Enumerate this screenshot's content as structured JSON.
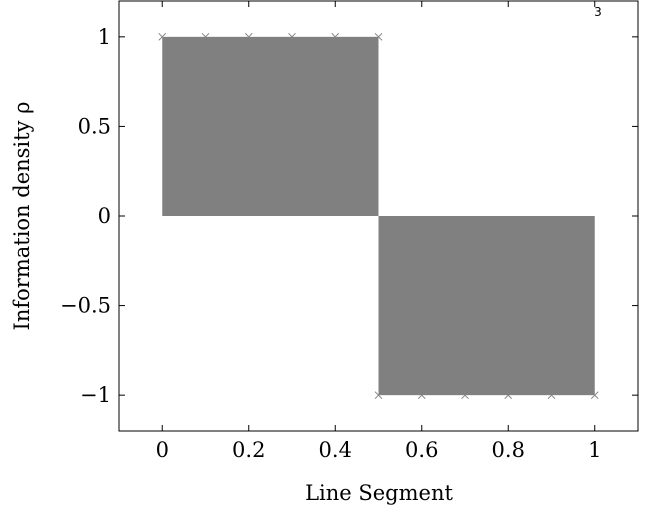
{
  "page_number": "3",
  "chart_data": {
    "type": "area",
    "xlabel": "Line Segment",
    "ylabel": "Information density ρ",
    "xlim": [
      -0.1,
      1.1
    ],
    "ylim": [
      -1.2,
      1.2
    ],
    "xticks": [
      0,
      0.2,
      0.4,
      0.6,
      0.8,
      1
    ],
    "xtick_labels": [
      "0",
      "0.2",
      "0.4",
      "0.6",
      "0.8",
      "1"
    ],
    "yticks": [
      -1,
      -0.5,
      0,
      0.5,
      1
    ],
    "ytick_labels": [
      "−1",
      "−0.5",
      "0",
      "0.5",
      "1"
    ],
    "series": [
      {
        "x": [
          0,
          0.1,
          0.2,
          0.3,
          0.4,
          0.5,
          0.5,
          0.6,
          0.7,
          0.8,
          0.9,
          1
        ],
        "y": [
          1,
          1,
          1,
          1,
          1,
          1,
          -1,
          -1,
          -1,
          -1,
          -1,
          -1
        ],
        "marker": "x",
        "fill_color": "#808080",
        "marker_color": "#808080"
      }
    ],
    "grid": false
  }
}
